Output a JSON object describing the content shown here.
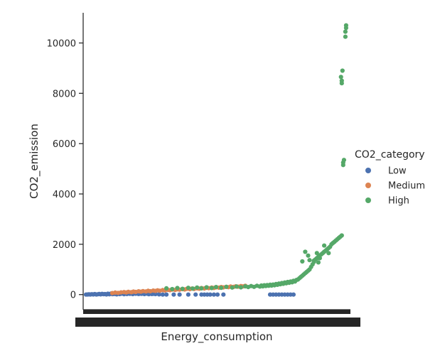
{
  "chart_data": {
    "type": "scatter",
    "title": "",
    "xlabel": "Energy_consumption",
    "ylabel": "CO2_emission",
    "ylim": [
      -600,
      11200
    ],
    "yticks": [
      0,
      2000,
      4000,
      6000,
      8000,
      10000
    ],
    "grid": false,
    "legend": {
      "title": "CO2_category",
      "placement": "right",
      "entries": [
        "Low",
        "Medium",
        "High"
      ]
    },
    "x_axis_note": "categorical axis with ~300 overlapping tick labels (unreadable)",
    "series": [
      {
        "name": "Low",
        "color": "#4c72b0",
        "points": [
          [
            0,
            0
          ],
          [
            2,
            5
          ],
          [
            4,
            10
          ],
          [
            6,
            3
          ],
          [
            8,
            15
          ],
          [
            10,
            8
          ],
          [
            12,
            20
          ],
          [
            14,
            5
          ],
          [
            16,
            12
          ],
          [
            18,
            25
          ],
          [
            20,
            10
          ],
          [
            22,
            30
          ],
          [
            24,
            15
          ],
          [
            26,
            20
          ],
          [
            28,
            8
          ],
          [
            30,
            35
          ],
          [
            32,
            12
          ],
          [
            34,
            40
          ],
          [
            36,
            18
          ],
          [
            38,
            25
          ],
          [
            40,
            30
          ],
          [
            42,
            10
          ],
          [
            44,
            45
          ],
          [
            46,
            20
          ],
          [
            48,
            35
          ],
          [
            50,
            50
          ],
          [
            52,
            15
          ],
          [
            54,
            40
          ],
          [
            56,
            25
          ],
          [
            58,
            55
          ],
          [
            60,
            30
          ],
          [
            62,
            45
          ],
          [
            64,
            20
          ],
          [
            66,
            60
          ],
          [
            68,
            35
          ],
          [
            70,
            50
          ],
          [
            72,
            25
          ],
          [
            74,
            40
          ],
          [
            76,
            30
          ],
          [
            78,
            45
          ],
          [
            80,
            20
          ],
          [
            82,
            55
          ],
          [
            84,
            35
          ],
          [
            86,
            15
          ],
          [
            88,
            40
          ],
          [
            90,
            25
          ],
          [
            92,
            30
          ],
          [
            95,
            20
          ],
          [
            100,
            10
          ],
          [
            105,
            0
          ],
          [
            110,
            0
          ],
          [
            120,
            0
          ],
          [
            128,
            0
          ],
          [
            140,
            0
          ],
          [
            150,
            0
          ],
          [
            158,
            0
          ],
          [
            162,
            0
          ],
          [
            166,
            0
          ],
          [
            170,
            0
          ],
          [
            175,
            0
          ],
          [
            180,
            0
          ],
          [
            188,
            0
          ],
          [
            252,
            0
          ],
          [
            256,
            0
          ],
          [
            260,
            0
          ],
          [
            264,
            0
          ],
          [
            268,
            0
          ],
          [
            272,
            0
          ],
          [
            276,
            0
          ],
          [
            280,
            0
          ],
          [
            284,
            0
          ]
        ]
      },
      {
        "name": "Medium",
        "color": "#dd8452",
        "points": [
          [
            36,
            60
          ],
          [
            40,
            80
          ],
          [
            44,
            70
          ],
          [
            48,
            90
          ],
          [
            52,
            100
          ],
          [
            55,
            85
          ],
          [
            58,
            110
          ],
          [
            62,
            95
          ],
          [
            65,
            120
          ],
          [
            68,
            105
          ],
          [
            72,
            130
          ],
          [
            75,
            115
          ],
          [
            78,
            140
          ],
          [
            82,
            125
          ],
          [
            85,
            150
          ],
          [
            88,
            135
          ],
          [
            92,
            160
          ],
          [
            95,
            145
          ],
          [
            98,
            170
          ],
          [
            101,
            155
          ],
          [
            105,
            180
          ],
          [
            108,
            165
          ],
          [
            112,
            190
          ],
          [
            115,
            175
          ],
          [
            118,
            200
          ],
          [
            122,
            185
          ],
          [
            125,
            210
          ],
          [
            128,
            195
          ],
          [
            132,
            220
          ],
          [
            135,
            205
          ],
          [
            138,
            230
          ],
          [
            142,
            215
          ],
          [
            145,
            240
          ],
          [
            148,
            225
          ],
          [
            152,
            250
          ],
          [
            155,
            235
          ],
          [
            158,
            260
          ],
          [
            162,
            245
          ],
          [
            165,
            270
          ],
          [
            168,
            255
          ],
          [
            172,
            280
          ],
          [
            175,
            265
          ],
          [
            178,
            290
          ],
          [
            182,
            275
          ],
          [
            185,
            300
          ],
          [
            188,
            285
          ],
          [
            192,
            310
          ],
          [
            195,
            295
          ],
          [
            198,
            320
          ],
          [
            202,
            305
          ],
          [
            205,
            330
          ],
          [
            208,
            315
          ],
          [
            212,
            340
          ],
          [
            215,
            325
          ],
          [
            218,
            350
          ]
        ]
      },
      {
        "name": "High",
        "color": "#55a868",
        "points": [
          [
            110,
            250
          ],
          [
            118,
            220
          ],
          [
            125,
            260
          ],
          [
            132,
            230
          ],
          [
            140,
            270
          ],
          [
            146,
            240
          ],
          [
            152,
            280
          ],
          [
            158,
            250
          ],
          [
            165,
            290
          ],
          [
            172,
            260
          ],
          [
            178,
            300
          ],
          [
            185,
            270
          ],
          [
            192,
            310
          ],
          [
            200,
            280
          ],
          [
            206,
            320
          ],
          [
            212,
            290
          ],
          [
            218,
            330
          ],
          [
            222,
            300
          ],
          [
            226,
            340
          ],
          [
            230,
            310
          ],
          [
            234,
            350
          ],
          [
            238,
            320
          ],
          [
            240,
            360
          ],
          [
            242,
            330
          ],
          [
            244,
            370
          ],
          [
            246,
            340
          ],
          [
            248,
            380
          ],
          [
            250,
            350
          ],
          [
            252,
            390
          ],
          [
            254,
            360
          ],
          [
            256,
            400
          ],
          [
            258,
            370
          ],
          [
            260,
            420
          ],
          [
            262,
            390
          ],
          [
            264,
            440
          ],
          [
            266,
            410
          ],
          [
            268,
            460
          ],
          [
            270,
            430
          ],
          [
            272,
            480
          ],
          [
            274,
            450
          ],
          [
            276,
            500
          ],
          [
            278,
            470
          ],
          [
            280,
            520
          ],
          [
            282,
            490
          ],
          [
            284,
            550
          ],
          [
            286,
            520
          ],
          [
            288,
            580
          ],
          [
            290,
            600
          ],
          [
            292,
            650
          ],
          [
            294,
            700
          ],
          [
            296,
            750
          ],
          [
            298,
            800
          ],
          [
            300,
            850
          ],
          [
            302,
            900
          ],
          [
            304,
            950
          ],
          [
            306,
            1000
          ],
          [
            308,
            1100
          ],
          [
            310,
            1200
          ],
          [
            312,
            1300
          ],
          [
            314,
            1400
          ],
          [
            316,
            1450
          ],
          [
            318,
            1500
          ],
          [
            320,
            1550
          ],
          [
            322,
            1600
          ],
          [
            324,
            1650
          ],
          [
            326,
            1700
          ],
          [
            328,
            1750
          ],
          [
            330,
            1800
          ],
          [
            332,
            1850
          ],
          [
            334,
            1900
          ],
          [
            336,
            2000
          ],
          [
            338,
            2050
          ],
          [
            340,
            2100
          ],
          [
            342,
            2150
          ],
          [
            344,
            2200
          ],
          [
            346,
            2250
          ],
          [
            348,
            2300
          ],
          [
            350,
            2350
          ],
          [
            300,
            1700
          ],
          [
            304,
            1550
          ],
          [
            312,
            1350
          ],
          [
            316,
            1650
          ],
          [
            320,
            1450
          ],
          [
            326,
            1950
          ],
          [
            332,
            1650
          ],
          [
            296,
            1320
          ],
          [
            306,
            1370
          ],
          [
            318,
            1280
          ],
          [
            352,
            5150
          ],
          [
            352,
            5250
          ],
          [
            353,
            5350
          ],
          [
            350,
            8400
          ],
          [
            350,
            8500
          ],
          [
            349,
            8650
          ],
          [
            351,
            8900
          ],
          [
            355,
            10250
          ],
          [
            355,
            10450
          ],
          [
            356,
            10600
          ],
          [
            356,
            10700
          ]
        ]
      }
    ]
  }
}
